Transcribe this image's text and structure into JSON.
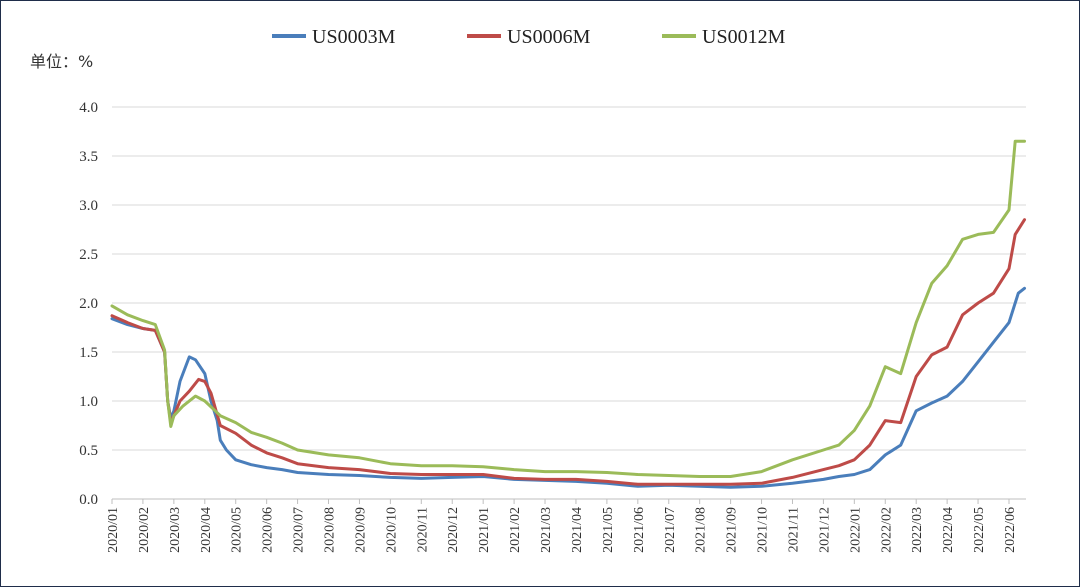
{
  "chart_data": {
    "type": "line",
    "title": "",
    "unit_label": "单位：%",
    "ylim": [
      0,
      4.0
    ],
    "yticks": [
      "0.0",
      "0.5",
      "1.0",
      "1.5",
      "2.0",
      "2.5",
      "3.0",
      "3.5",
      "4.0"
    ],
    "xticks": [
      "2020/01",
      "2020/02",
      "2020/03",
      "2020/04",
      "2020/05",
      "2020/06",
      "2020/07",
      "2020/08",
      "2020/09",
      "2020/10",
      "2020/11",
      "2020/12",
      "2021/01",
      "2021/02",
      "2021/03",
      "2021/04",
      "2021/05",
      "2021/06",
      "2021/07",
      "2021/08",
      "2021/09",
      "2021/10",
      "2021/11",
      "2021/12",
      "2022/01",
      "2022/02",
      "2022/03",
      "2022/04",
      "2022/05",
      "2022/06"
    ],
    "grid": "horizontal",
    "legend_position": "top-center",
    "series": [
      {
        "name": "US0003M",
        "color": "#4a7ebb",
        "points": [
          [
            0,
            1.84
          ],
          [
            0.5,
            1.78
          ],
          [
            1,
            1.74
          ],
          [
            1.4,
            1.72
          ],
          [
            1.7,
            1.5
          ],
          [
            1.8,
            1.0
          ],
          [
            1.9,
            0.82
          ],
          [
            2.0,
            0.9
          ],
          [
            2.2,
            1.2
          ],
          [
            2.5,
            1.45
          ],
          [
            2.7,
            1.42
          ],
          [
            3.0,
            1.28
          ],
          [
            3.2,
            1.0
          ],
          [
            3.4,
            0.8
          ],
          [
            3.5,
            0.6
          ],
          [
            3.7,
            0.5
          ],
          [
            4,
            0.4
          ],
          [
            4.5,
            0.35
          ],
          [
            5,
            0.32
          ],
          [
            5.5,
            0.3
          ],
          [
            6,
            0.27
          ],
          [
            7,
            0.25
          ],
          [
            8,
            0.24
          ],
          [
            9,
            0.22
          ],
          [
            10,
            0.21
          ],
          [
            11,
            0.22
          ],
          [
            12,
            0.23
          ],
          [
            13,
            0.2
          ],
          [
            14,
            0.19
          ],
          [
            15,
            0.18
          ],
          [
            16,
            0.16
          ],
          [
            17,
            0.13
          ],
          [
            18,
            0.14
          ],
          [
            19,
            0.13
          ],
          [
            20,
            0.12
          ],
          [
            21,
            0.13
          ],
          [
            22,
            0.16
          ],
          [
            23,
            0.2
          ],
          [
            23.5,
            0.23
          ],
          [
            24,
            0.25
          ],
          [
            24.5,
            0.3
          ],
          [
            25,
            0.45
          ],
          [
            25.5,
            0.55
          ],
          [
            26,
            0.9
          ],
          [
            26.5,
            0.98
          ],
          [
            27,
            1.05
          ],
          [
            27.5,
            1.2
          ],
          [
            28,
            1.4
          ],
          [
            28.5,
            1.6
          ],
          [
            29,
            1.8
          ],
          [
            29.3,
            2.1
          ],
          [
            29.5,
            2.15
          ]
        ]
      },
      {
        "name": "US0006M",
        "color": "#be4b48",
        "points": [
          [
            0,
            1.87
          ],
          [
            0.5,
            1.8
          ],
          [
            1,
            1.74
          ],
          [
            1.4,
            1.72
          ],
          [
            1.7,
            1.5
          ],
          [
            1.8,
            1.0
          ],
          [
            1.9,
            0.78
          ],
          [
            2.0,
            0.85
          ],
          [
            2.2,
            1.0
          ],
          [
            2.5,
            1.1
          ],
          [
            2.8,
            1.22
          ],
          [
            3.0,
            1.2
          ],
          [
            3.2,
            1.08
          ],
          [
            3.5,
            0.75
          ],
          [
            4,
            0.67
          ],
          [
            4.5,
            0.55
          ],
          [
            5,
            0.47
          ],
          [
            5.5,
            0.42
          ],
          [
            6,
            0.36
          ],
          [
            7,
            0.32
          ],
          [
            8,
            0.3
          ],
          [
            9,
            0.26
          ],
          [
            10,
            0.25
          ],
          [
            11,
            0.25
          ],
          [
            12,
            0.25
          ],
          [
            13,
            0.21
          ],
          [
            14,
            0.2
          ],
          [
            15,
            0.2
          ],
          [
            16,
            0.18
          ],
          [
            17,
            0.15
          ],
          [
            18,
            0.15
          ],
          [
            19,
            0.15
          ],
          [
            20,
            0.15
          ],
          [
            21,
            0.16
          ],
          [
            22,
            0.22
          ],
          [
            23,
            0.3
          ],
          [
            23.5,
            0.34
          ],
          [
            24,
            0.4
          ],
          [
            24.5,
            0.55
          ],
          [
            25,
            0.8
          ],
          [
            25.5,
            0.78
          ],
          [
            26,
            1.25
          ],
          [
            26.5,
            1.47
          ],
          [
            27,
            1.55
          ],
          [
            27.5,
            1.88
          ],
          [
            28,
            2.0
          ],
          [
            28.5,
            2.1
          ],
          [
            29,
            2.35
          ],
          [
            29.2,
            2.7
          ],
          [
            29.5,
            2.85
          ]
        ]
      },
      {
        "name": "US0012M",
        "color": "#9bbb59",
        "points": [
          [
            0,
            1.97
          ],
          [
            0.5,
            1.88
          ],
          [
            1,
            1.82
          ],
          [
            1.4,
            1.78
          ],
          [
            1.7,
            1.52
          ],
          [
            1.8,
            1.0
          ],
          [
            1.9,
            0.74
          ],
          [
            2.0,
            0.85
          ],
          [
            2.3,
            0.95
          ],
          [
            2.7,
            1.05
          ],
          [
            3.0,
            1.0
          ],
          [
            3.5,
            0.85
          ],
          [
            4,
            0.78
          ],
          [
            4.5,
            0.68
          ],
          [
            5,
            0.63
          ],
          [
            5.5,
            0.57
          ],
          [
            6,
            0.5
          ],
          [
            7,
            0.45
          ],
          [
            8,
            0.42
          ],
          [
            9,
            0.36
          ],
          [
            10,
            0.34
          ],
          [
            11,
            0.34
          ],
          [
            12,
            0.33
          ],
          [
            13,
            0.3
          ],
          [
            14,
            0.28
          ],
          [
            15,
            0.28
          ],
          [
            16,
            0.27
          ],
          [
            17,
            0.25
          ],
          [
            18,
            0.24
          ],
          [
            19,
            0.23
          ],
          [
            20,
            0.23
          ],
          [
            21,
            0.28
          ],
          [
            22,
            0.4
          ],
          [
            23,
            0.5
          ],
          [
            23.5,
            0.55
          ],
          [
            24,
            0.7
          ],
          [
            24.5,
            0.95
          ],
          [
            25,
            1.35
          ],
          [
            25.5,
            1.28
          ],
          [
            26,
            1.8
          ],
          [
            26.5,
            2.2
          ],
          [
            27,
            2.38
          ],
          [
            27.5,
            2.65
          ],
          [
            28,
            2.7
          ],
          [
            28.5,
            2.72
          ],
          [
            29,
            2.95
          ],
          [
            29.2,
            3.65
          ],
          [
            29.5,
            3.65
          ]
        ]
      }
    ]
  }
}
